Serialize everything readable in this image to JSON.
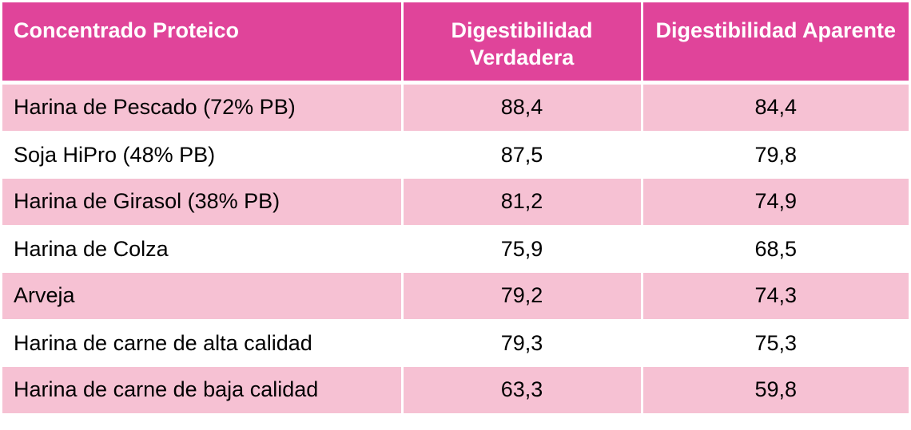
{
  "colors": {
    "header_bg": "#E0449A",
    "band_bg": "#F6C1D3"
  },
  "table": {
    "headers": [
      "Concentrado Proteico",
      "Digestibilidad Verdadera",
      "Digestibilidad Aparente"
    ],
    "rows": [
      [
        "Harina de Pescado (72% PB)",
        "88,4",
        "84,4"
      ],
      [
        "Soja HiPro (48% PB)",
        "87,5",
        "79,8"
      ],
      [
        "Harina de Girasol (38% PB)",
        "81,2",
        "74,9"
      ],
      [
        "Harina de Colza",
        "75,9",
        "68,5"
      ],
      [
        "Arveja",
        "79,2",
        "74,3"
      ],
      [
        "Harina de carne de alta calidad",
        "79,3",
        "75,3"
      ],
      [
        "Harina de carne de baja calidad",
        "63,3",
        "59,8"
      ]
    ]
  }
}
